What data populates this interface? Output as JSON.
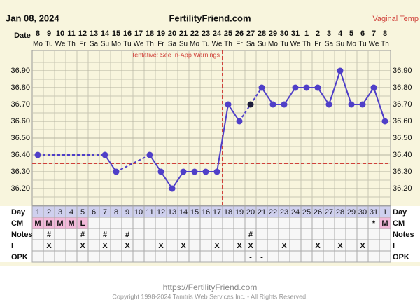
{
  "header": {
    "date": "Jan 08, 2024",
    "site": "FertilityFriend.com",
    "temp_type": "Vaginal Temp"
  },
  "chart_data": {
    "type": "line",
    "date_label": "Date",
    "categories": [
      "8",
      "9",
      "10",
      "11",
      "12",
      "13",
      "14",
      "15",
      "16",
      "17",
      "18",
      "19",
      "20",
      "21",
      "22",
      "23",
      "24",
      "25",
      "26",
      "27",
      "28",
      "29",
      "30",
      "31",
      "1",
      "2",
      "3",
      "4",
      "5",
      "6",
      "7",
      "8"
    ],
    "weekdays": [
      "Mo",
      "Tu",
      "We",
      "Th",
      "Fr",
      "Sa",
      "Su",
      "Mo",
      "Tu",
      "We",
      "Th",
      "Fr",
      "Sa",
      "Su",
      "Mo",
      "Tu",
      "We",
      "Th",
      "Fr",
      "Sa",
      "Su",
      "Mo",
      "Tu",
      "We",
      "Th",
      "Fr",
      "Sa",
      "Su",
      "Mo",
      "Tu",
      "We",
      "Th"
    ],
    "series": [
      {
        "color": "#4f3fc8",
        "values": [
          36.4,
          null,
          null,
          null,
          null,
          null,
          36.4,
          36.3,
          null,
          null,
          36.4,
          36.3,
          36.2,
          36.3,
          36.3,
          36.3,
          36.3,
          36.7,
          36.6,
          null,
          36.8,
          36.7,
          36.7,
          36.8,
          36.8,
          36.8,
          36.7,
          36.9,
          36.7,
          36.7,
          36.8,
          36.6
        ]
      },
      {
        "color": "#1e1e3c",
        "values": [
          null,
          null,
          null,
          null,
          null,
          null,
          null,
          null,
          null,
          null,
          null,
          null,
          null,
          null,
          null,
          null,
          null,
          null,
          null,
          36.7,
          null,
          null,
          null,
          null,
          null,
          null,
          null,
          null,
          null,
          null,
          null,
          null
        ]
      }
    ],
    "ylim": [
      36.1,
      37.0
    ],
    "yticks": [
      {
        "value": 36.2,
        "label": "36.20"
      },
      {
        "value": 36.3,
        "label": "36.30"
      },
      {
        "value": 36.4,
        "label": "36.40"
      },
      {
        "value": 36.5,
        "label": "36.50"
      },
      {
        "value": 36.6,
        "label": "36.60"
      },
      {
        "value": 36.7,
        "label": "36.70"
      },
      {
        "value": 36.8,
        "label": "36.80"
      },
      {
        "value": 36.9,
        "label": "36.90"
      }
    ],
    "minor_yticks": [
      36.15,
      36.25,
      36.35,
      36.45,
      36.55,
      36.65,
      36.75,
      36.85,
      36.95
    ],
    "grid": true,
    "coverline": 36.35,
    "coverline_color": "#d0413a",
    "ovulation_index": 16,
    "annotation": "Tentative: See In-App Warnings"
  },
  "table": {
    "rows": [
      {
        "label": "Day",
        "cells": [
          1,
          2,
          3,
          4,
          5,
          6,
          7,
          8,
          9,
          10,
          11,
          12,
          13,
          14,
          15,
          16,
          17,
          18,
          19,
          20,
          21,
          22,
          23,
          24,
          25,
          26,
          27,
          28,
          29,
          30,
          31,
          1
        ]
      },
      {
        "label": "CM",
        "cells": [
          "M",
          "M",
          "M",
          "M",
          "L",
          null,
          null,
          null,
          null,
          null,
          null,
          null,
          null,
          null,
          null,
          null,
          null,
          null,
          null,
          null,
          null,
          null,
          null,
          null,
          null,
          null,
          null,
          null,
          null,
          null,
          "*",
          "M"
        ]
      },
      {
        "label": "Notes",
        "cells": [
          null,
          "#",
          null,
          null,
          "#",
          null,
          "#",
          null,
          "#",
          null,
          null,
          null,
          null,
          null,
          null,
          null,
          null,
          null,
          null,
          "#",
          null,
          null,
          null,
          null,
          null,
          null,
          null,
          null,
          null,
          null,
          null,
          null
        ]
      },
      {
        "label": "I",
        "cells": [
          null,
          "X",
          null,
          null,
          "X",
          null,
          "X",
          null,
          "X",
          null,
          null,
          "X",
          null,
          "X",
          null,
          null,
          "X",
          null,
          "X",
          "X",
          null,
          null,
          "X",
          null,
          null,
          "X",
          null,
          "X",
          null,
          "X",
          null,
          null
        ]
      },
      {
        "label": "OPK",
        "cells": [
          null,
          null,
          null,
          null,
          null,
          null,
          null,
          null,
          null,
          null,
          null,
          null,
          null,
          null,
          null,
          null,
          null,
          null,
          null,
          "-",
          "-",
          null,
          null,
          null,
          null,
          null,
          null,
          null,
          null,
          null,
          null,
          null
        ]
      }
    ]
  },
  "footer": {
    "url": "https://FertilityFriend.com",
    "copyright": "Copyright 1998-2024 Tamtris Web Services Inc. - All Rights Reserved."
  }
}
